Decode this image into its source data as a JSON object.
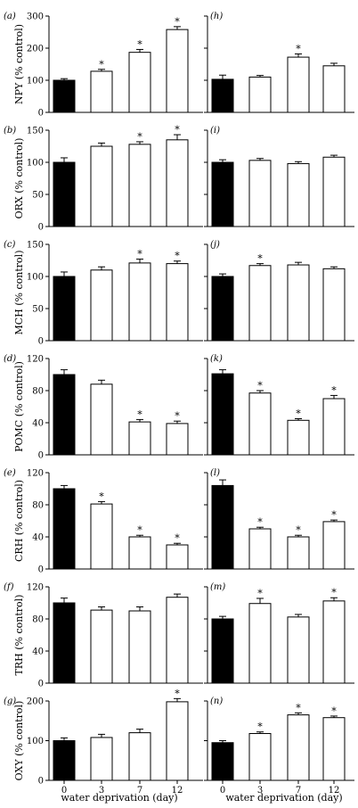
{
  "x_axis_label": "water deprivation (day)",
  "chart_data": [
    {
      "type": "bar",
      "panel": "(a)",
      "ylabel": "NPY (% control)",
      "categories": [
        "0",
        "3",
        "7",
        "12"
      ],
      "values": [
        100,
        128,
        187,
        258
      ],
      "errors": [
        5,
        6,
        9,
        9
      ],
      "significant": [
        false,
        true,
        true,
        true
      ],
      "ylim": [
        0,
        300
      ],
      "yticks": [
        "0",
        "100",
        "200",
        "300"
      ],
      "fills": [
        "#000000",
        "#ffffff",
        "#ffffff",
        "#ffffff"
      ]
    },
    {
      "type": "bar",
      "panel": "(h)",
      "ylabel": "",
      "categories": [
        "0",
        "3",
        "7",
        "12"
      ],
      "values": [
        103,
        110,
        172,
        145
      ],
      "errors": [
        13,
        5,
        10,
        8
      ],
      "significant": [
        false,
        false,
        true,
        false
      ],
      "ylim": [
        0,
        300
      ],
      "yticks": [],
      "fills": [
        "#000000",
        "#ffffff",
        "#ffffff",
        "#ffffff"
      ]
    },
    {
      "type": "bar",
      "panel": "(b)",
      "ylabel": "ORX (% control)",
      "categories": [
        "0",
        "3",
        "7",
        "12"
      ],
      "values": [
        100,
        125,
        128,
        135
      ],
      "errors": [
        7,
        5,
        4,
        8
      ],
      "significant": [
        false,
        false,
        true,
        true
      ],
      "ylim": [
        0,
        150
      ],
      "yticks": [
        "0",
        "50",
        "100",
        "150"
      ],
      "fills": [
        "#000000",
        "#ffffff",
        "#ffffff",
        "#ffffff"
      ]
    },
    {
      "type": "bar",
      "panel": "(i)",
      "ylabel": "",
      "categories": [
        "0",
        "3",
        "7",
        "12"
      ],
      "values": [
        100,
        103,
        98,
        108
      ],
      "errors": [
        4,
        3,
        3,
        3
      ],
      "significant": [
        false,
        false,
        false,
        false
      ],
      "ylim": [
        0,
        150
      ],
      "yticks": [],
      "fills": [
        "#000000",
        "#ffffff",
        "#ffffff",
        "#ffffff"
      ]
    },
    {
      "type": "bar",
      "panel": "(c)",
      "ylabel": "MCH (% control)",
      "categories": [
        "0",
        "3",
        "7",
        "12"
      ],
      "values": [
        100,
        110,
        121,
        120
      ],
      "errors": [
        7,
        5,
        6,
        4
      ],
      "significant": [
        false,
        false,
        true,
        true
      ],
      "ylim": [
        0,
        150
      ],
      "yticks": [
        "0",
        "50",
        "100",
        "150"
      ],
      "fills": [
        "#000000",
        "#ffffff",
        "#ffffff",
        "#ffffff"
      ]
    },
    {
      "type": "bar",
      "panel": "(j)",
      "ylabel": "",
      "categories": [
        "0",
        "3",
        "7",
        "12"
      ],
      "values": [
        100,
        117,
        118,
        112
      ],
      "errors": [
        4,
        3,
        4,
        3
      ],
      "significant": [
        false,
        true,
        false,
        false
      ],
      "ylim": [
        0,
        150
      ],
      "yticks": [],
      "fills": [
        "#000000",
        "#ffffff",
        "#ffffff",
        "#ffffff"
      ]
    },
    {
      "type": "bar",
      "panel": "(d)",
      "ylabel": "POMC (% control)",
      "categories": [
        "0",
        "3",
        "7",
        "12"
      ],
      "values": [
        100,
        88,
        41,
        39
      ],
      "errors": [
        6,
        5,
        3,
        3
      ],
      "significant": [
        false,
        false,
        true,
        true
      ],
      "ylim": [
        0,
        120
      ],
      "yticks": [
        "0",
        "40",
        "80",
        "120"
      ],
      "fills": [
        "#000000",
        "#ffffff",
        "#ffffff",
        "#ffffff"
      ]
    },
    {
      "type": "bar",
      "panel": "(k)",
      "ylabel": "",
      "categories": [
        "0",
        "3",
        "7",
        "12"
      ],
      "values": [
        101,
        77,
        43,
        70
      ],
      "errors": [
        5,
        3,
        2,
        4
      ],
      "significant": [
        false,
        true,
        true,
        true
      ],
      "ylim": [
        0,
        120
      ],
      "yticks": [],
      "fills": [
        "#000000",
        "#ffffff",
        "#ffffff",
        "#ffffff"
      ]
    },
    {
      "type": "bar",
      "panel": "(e)",
      "ylabel": "CRH (% control)",
      "categories": [
        "0",
        "3",
        "7",
        "12"
      ],
      "values": [
        100,
        81,
        40,
        30
      ],
      "errors": [
        4,
        3,
        2,
        2
      ],
      "significant": [
        false,
        true,
        true,
        true
      ],
      "ylim": [
        0,
        120
      ],
      "yticks": [
        "0",
        "40",
        "80",
        "120"
      ],
      "fills": [
        "#000000",
        "#ffffff",
        "#ffffff",
        "#ffffff"
      ]
    },
    {
      "type": "bar",
      "panel": "(l)",
      "ylabel": "",
      "categories": [
        "0",
        "3",
        "7",
        "12"
      ],
      "values": [
        104,
        50,
        40,
        59
      ],
      "errors": [
        7,
        2,
        2,
        2
      ],
      "significant": [
        false,
        true,
        true,
        true
      ],
      "ylim": [
        0,
        120
      ],
      "yticks": [],
      "fills": [
        "#000000",
        "#ffffff",
        "#ffffff",
        "#ffffff"
      ]
    },
    {
      "type": "bar",
      "panel": "(f)",
      "ylabel": "TRH (% control)",
      "categories": [
        "0",
        "3",
        "7",
        "12"
      ],
      "values": [
        100,
        91,
        90,
        107
      ],
      "errors": [
        6,
        4,
        5,
        4
      ],
      "significant": [
        false,
        false,
        false,
        false
      ],
      "ylim": [
        0,
        120
      ],
      "yticks": [
        "0",
        "40",
        "80",
        "120"
      ],
      "fills": [
        "#000000",
        "#ffffff",
        "#ffffff",
        "#ffffff"
      ]
    },
    {
      "type": "bar",
      "panel": "(m)",
      "ylabel": "",
      "categories": [
        "0",
        "3",
        "7",
        "12"
      ],
      "values": [
        100,
        124,
        103,
        128
      ],
      "errors": [
        4,
        8,
        4,
        5
      ],
      "significant": [
        false,
        true,
        false,
        true
      ],
      "ylim": [
        0,
        150
      ],
      "yticks": [],
      "fills": [
        "#000000",
        "#ffffff",
        "#ffffff",
        "#ffffff"
      ]
    },
    {
      "type": "bar",
      "panel": "(g)",
      "ylabel": "OXY (% control)",
      "categories": [
        "0",
        "3",
        "7",
        "12"
      ],
      "values": [
        100,
        108,
        120,
        198
      ],
      "errors": [
        7,
        8,
        9,
        8
      ],
      "significant": [
        false,
        false,
        false,
        true
      ],
      "ylim": [
        0,
        200
      ],
      "yticks": [
        "0",
        "100",
        "200"
      ],
      "fills": [
        "#000000",
        "#ffffff",
        "#ffffff",
        "#ffffff"
      ]
    },
    {
      "type": "bar",
      "panel": "(n)",
      "ylabel": "",
      "categories": [
        "0",
        "3",
        "7",
        "12"
      ],
      "values": [
        95,
        118,
        165,
        158
      ],
      "errors": [
        5,
        4,
        5,
        4
      ],
      "significant": [
        false,
        true,
        true,
        true
      ],
      "ylim": [
        0,
        200
      ],
      "yticks": [],
      "fills": [
        "#000000",
        "#ffffff",
        "#ffffff",
        "#ffffff"
      ]
    }
  ]
}
